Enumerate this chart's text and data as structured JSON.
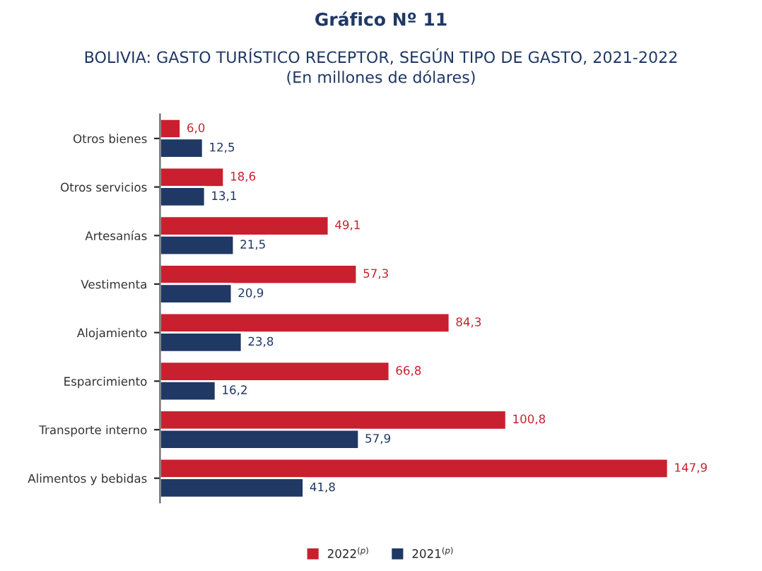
{
  "chart_data": {
    "type": "bar",
    "orientation": "horizontal",
    "title": "Gráfico Nº 11",
    "subtitle": "BOLIVIA: GASTO TURÍSTICO RECEPTOR, SEGÚN TIPO DE GASTO, 2021-2022\n(En millones de dólares)",
    "categories": [
      "Otros bienes",
      "Otros servicios",
      "Artesanías",
      "Vestimenta",
      "Alojamiento",
      "Esparcimiento",
      "Transporte interno",
      "Alimentos y bebidas"
    ],
    "series": [
      {
        "name": "2022$^{(p)}$",
        "color": "#c8202f",
        "values": [
          6.0,
          18.6,
          49.1,
          57.3,
          84.3,
          66.8,
          100.8,
          147.9
        ],
        "value_labels": [
          "6,0",
          "18,6",
          "49,1",
          "57,3",
          "84,3",
          "66,8",
          "100,8",
          "147,9"
        ]
      },
      {
        "name": "2021$^{(p)}$",
        "color": "#1f3864",
        "values": [
          12.5,
          13.1,
          21.5,
          20.9,
          23.8,
          16.2,
          57.9,
          41.8
        ],
        "value_labels": [
          "12,5",
          "13,1",
          "21,5",
          "20,9",
          "23,8",
          "16,2",
          "57,9",
          "41,8"
        ]
      }
    ],
    "tick_labels": "y",
    "grid": false,
    "legend": "bottom"
  }
}
